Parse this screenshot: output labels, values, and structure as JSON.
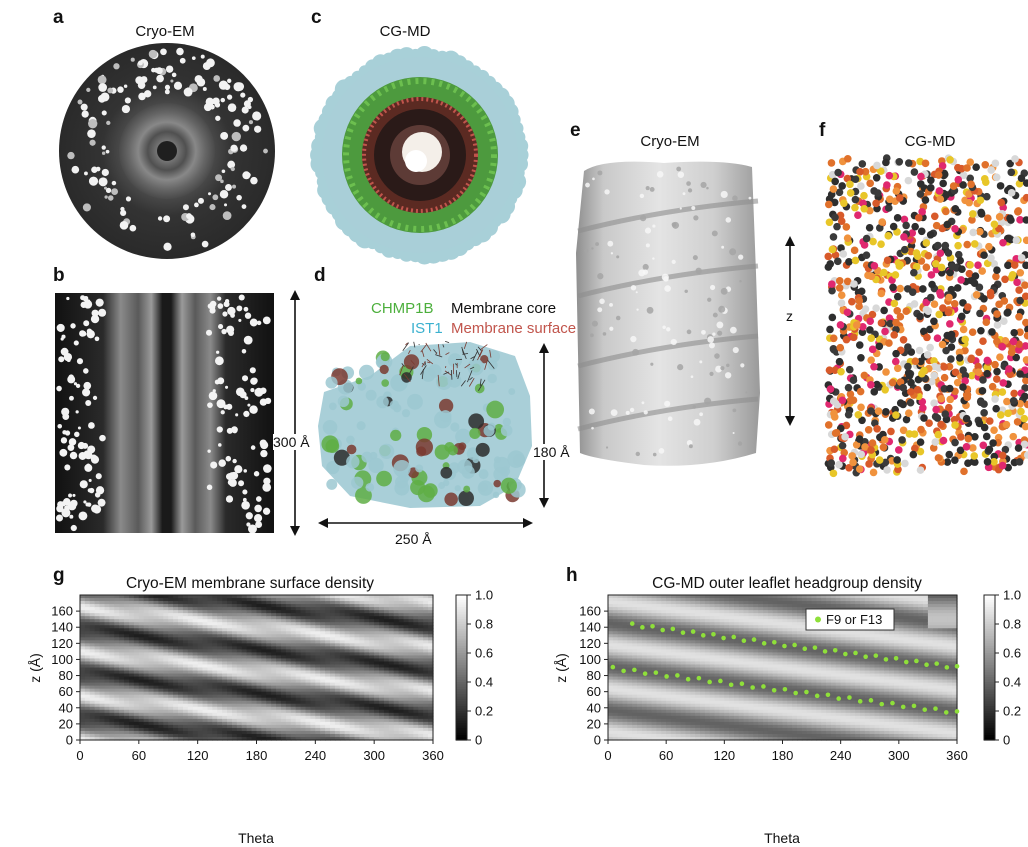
{
  "panels": {
    "a": {
      "letter": "a",
      "title": "Cryo-EM"
    },
    "b": {
      "letter": "b",
      "dimension": "300 Å"
    },
    "c": {
      "letter": "c",
      "title": "CG-MD"
    },
    "d": {
      "letter": "d",
      "legend": [
        {
          "text": "CHMP1B",
          "color": "#4caf3c"
        },
        {
          "text": "Membrane core",
          "color": "#111111"
        },
        {
          "text": "IST1",
          "color": "#3bb1cf"
        },
        {
          "text": "Membrane surface",
          "color": "#c1554c"
        }
      ],
      "height_label": "180 Å",
      "width_label": "250 Å"
    },
    "e": {
      "letter": "e",
      "title": "Cryo-EM",
      "axis_label": "z"
    },
    "f": {
      "letter": "f",
      "title": "CG-MD"
    },
    "g": {
      "letter": "g"
    },
    "h": {
      "letter": "h"
    }
  },
  "chart_data": [
    {
      "type": "heatmap",
      "title": "Cryo-EM membrane surface density",
      "xlabel": "Theta",
      "ylabel": "z (Å)",
      "x_ticks": [
        0,
        60,
        120,
        180,
        240,
        300,
        360
      ],
      "y_ticks": [
        0,
        20,
        40,
        60,
        80,
        100,
        120,
        140,
        160
      ],
      "xlim": [
        0,
        360
      ],
      "ylim": [
        0,
        180
      ],
      "colorbar": {
        "ticks": [
          0,
          0.2,
          0.4,
          0.6,
          0.8,
          1.0
        ],
        "labels": [
          "0",
          "0.2",
          "0.4",
          "0.6",
          "0.8",
          "1.0"
        ],
        "colormap": "gray"
      },
      "pattern": {
        "description": "diagonal periodic bands",
        "period_z": 55,
        "slope_z_per_deg": -0.14
      }
    },
    {
      "type": "heatmap",
      "title": "CG-MD outer leaflet headgroup density",
      "xlabel": "Theta",
      "ylabel": "z (Å)",
      "x_ticks": [
        0,
        60,
        120,
        180,
        240,
        300,
        360
      ],
      "y_ticks": [
        0,
        20,
        40,
        60,
        80,
        100,
        120,
        140,
        160
      ],
      "xlim": [
        0,
        360
      ],
      "ylim": [
        0,
        180
      ],
      "colorbar": {
        "ticks": [
          0,
          0.2,
          0.4,
          0.6,
          0.8,
          1.0
        ],
        "labels": [
          "0",
          "0.2",
          "0.4",
          "0.6",
          "0.8",
          "1.0"
        ],
        "colormap": "gray"
      },
      "legend": {
        "label": "F9 or F13",
        "color": "#8fe03a",
        "placement": "top-right"
      },
      "series": [
        {
          "name": "F9 or F13",
          "lines": [
            {
              "theta_start": 25,
              "z_start": 143,
              "theta_end": 360,
              "z_end": 90
            },
            {
              "theta_start": 5,
              "z_start": 89,
              "theta_end": 360,
              "z_end": 34
            }
          ],
          "n_points_per_line": 33
        }
      ]
    }
  ]
}
